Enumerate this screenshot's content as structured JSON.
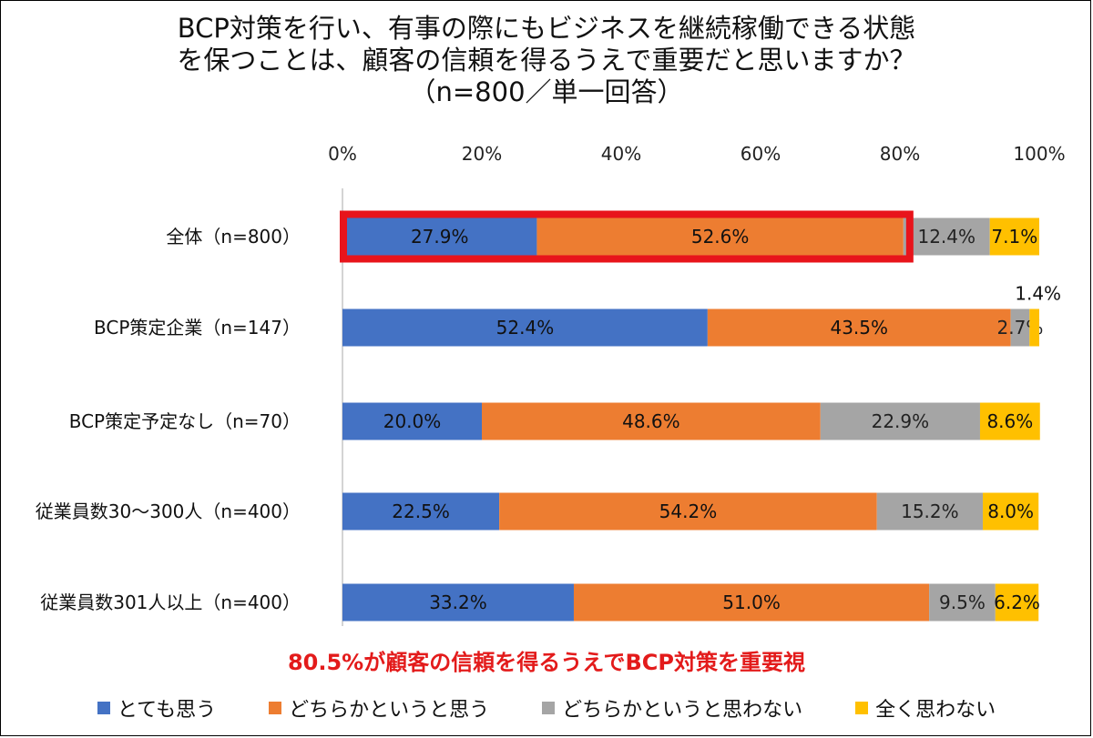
{
  "title": {
    "line1": "BCP対策を行い、有事の際にもビジネスを継続稼働できる状態",
    "line2": "を保つことは、顧客の信頼を得るうえで重要だと思いますか？",
    "line3": "（n=800／単一回答）"
  },
  "caption": "80.5%が顧客の信頼を得るうえでBCP対策を重要視",
  "colors": {
    "series": [
      "#4472c4",
      "#ed7d31",
      "#a5a5a5",
      "#ffc000"
    ],
    "highlight": "#e8141b"
  },
  "chart_data": {
    "type": "bar",
    "orientation": "horizontal",
    "stacked": true,
    "percent": true,
    "categories": [
      "全体（n=800）",
      "BCP策定企業（n=147）",
      "BCP策定予定なし（n=70）",
      "従業員数30〜300人（n=400）",
      "従業員数301人以上（n=400）"
    ],
    "series": [
      {
        "name": "とても思う",
        "values": [
          27.9,
          52.4,
          20.0,
          22.5,
          33.2
        ],
        "labels": [
          "27.9%",
          "52.4%",
          "20.0%",
          "22.5%",
          "33.2%"
        ]
      },
      {
        "name": "どちらかというと思う",
        "values": [
          52.6,
          43.5,
          48.6,
          54.2,
          51.0
        ],
        "labels": [
          "52.6%",
          "43.5%",
          "48.6%",
          "54.2%",
          "51.0%"
        ]
      },
      {
        "name": "どちらかというと思わない",
        "values": [
          12.4,
          2.7,
          22.9,
          15.2,
          9.5
        ],
        "labels": [
          "12.4%",
          "2.7%",
          "22.9%",
          "15.2%",
          "9.5%"
        ]
      },
      {
        "name": "全く思わない",
        "values": [
          7.1,
          1.4,
          8.6,
          8.0,
          6.2
        ],
        "labels": [
          "7.1%",
          "1.4%",
          "8.6%",
          "8.0%",
          "6.2%"
        ]
      }
    ],
    "xlim": [
      0,
      100
    ],
    "xticks": [
      "0%",
      "20%",
      "40%",
      "60%",
      "80%",
      "100%"
    ],
    "legend_position": "bottom",
    "highlight": {
      "category_index": 0,
      "series": [
        0,
        1
      ]
    }
  }
}
